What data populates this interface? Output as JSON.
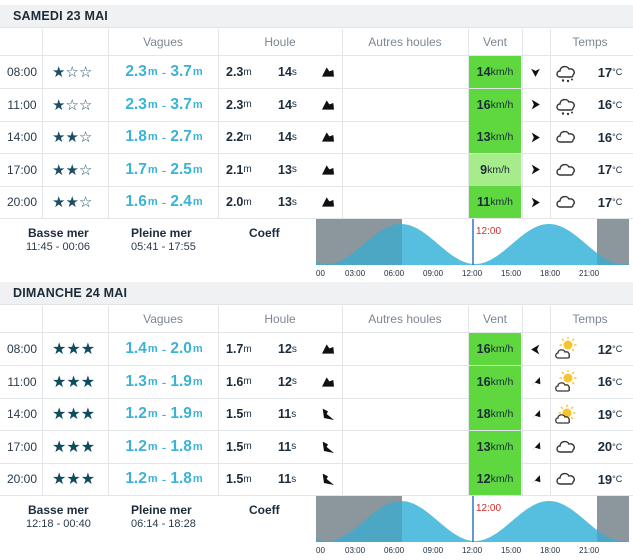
{
  "columns": {
    "waves": "Vagues",
    "swell": "Houle",
    "other_swells": "Autres houles",
    "wind": "Vent",
    "weather": "Temps"
  },
  "colors": {
    "wind_dark": "#5fd83f",
    "wind_light": "#a6ec8a",
    "wave_text": "#3ab3d6",
    "tide_fill": "#56bfdf",
    "night": "#a4aaaf"
  },
  "days": [
    {
      "title": "SAMEDI 23 MAI",
      "rows": [
        {
          "time": "08:00",
          "stars": "★☆☆",
          "wave_min": "2.3",
          "wave_max": "3.7",
          "wave_unit": "m",
          "swell_h": "2.3",
          "swell_h_unit": "m",
          "swell_p": "14",
          "swell_p_unit": "s",
          "swell_icon": "arrow-northeast-icon",
          "wind": "14",
          "wind_unit": "km/h",
          "wind_level": "dark",
          "wind_icon": "arrow-down-icon",
          "weather_icon": "cloud-drizzle-icon",
          "temp": "17",
          "temp_unit": "°C"
        },
        {
          "time": "11:00",
          "stars": "★☆☆",
          "wave_min": "2.3",
          "wave_max": "3.7",
          "wave_unit": "m",
          "swell_h": "2.3",
          "swell_h_unit": "m",
          "swell_p": "14",
          "swell_p_unit": "s",
          "swell_icon": "arrow-northeast-icon",
          "wind": "16",
          "wind_unit": "km/h",
          "wind_level": "dark",
          "wind_icon": "arrow-right-icon",
          "weather_icon": "cloud-drizzle-icon",
          "temp": "16",
          "temp_unit": "°C"
        },
        {
          "time": "14:00",
          "stars": "★★☆",
          "wave_min": "1.8",
          "wave_max": "2.7",
          "wave_unit": "m",
          "swell_h": "2.2",
          "swell_h_unit": "m",
          "swell_p": "14",
          "swell_p_unit": "s",
          "swell_icon": "arrow-northeast-icon",
          "wind": "13",
          "wind_unit": "km/h",
          "wind_level": "dark",
          "wind_icon": "arrow-right-icon",
          "weather_icon": "cloud-icon",
          "temp": "16",
          "temp_unit": "°C"
        },
        {
          "time": "17:00",
          "stars": "★★☆",
          "wave_min": "1.7",
          "wave_max": "2.5",
          "wave_unit": "m",
          "swell_h": "2.1",
          "swell_h_unit": "m",
          "swell_p": "13",
          "swell_p_unit": "s",
          "swell_icon": "arrow-northeast-icon",
          "wind": "9",
          "wind_unit": "km/h",
          "wind_level": "light",
          "wind_icon": "arrow-right-icon",
          "weather_icon": "cloud-icon",
          "temp": "17",
          "temp_unit": "°C"
        },
        {
          "time": "20:00",
          "stars": "★★☆",
          "wave_min": "1.6",
          "wave_max": "2.4",
          "wave_unit": "m",
          "swell_h": "2.0",
          "swell_h_unit": "m",
          "swell_p": "13",
          "swell_p_unit": "s",
          "swell_icon": "arrow-northeast-icon",
          "wind": "11",
          "wind_unit": "km/h",
          "wind_level": "dark",
          "wind_icon": "arrow-right-icon",
          "weather_icon": "cloud-icon",
          "temp": "17",
          "temp_unit": "°C"
        }
      ],
      "tide": {
        "low_label": "Basse mer",
        "low_times": "11:45 - 00:06",
        "high_label": "Pleine mer",
        "high_times": "05:41 - 17:55",
        "coeff_label": "Coeff",
        "now": "12:00"
      },
      "axis": [
        "00",
        "03:00",
        "06:00",
        "09:00",
        "12:00",
        "15:00",
        "18:00",
        "21:00"
      ]
    },
    {
      "title": "DIMANCHE 24 MAI",
      "rows": [
        {
          "time": "08:00",
          "stars": "★★★",
          "wave_min": "1.4",
          "wave_max": "2.0",
          "wave_unit": "m",
          "swell_h": "1.7",
          "swell_h_unit": "m",
          "swell_p": "12",
          "swell_p_unit": "s",
          "swell_icon": "arrow-northeast-icon",
          "wind": "16",
          "wind_unit": "km/h",
          "wind_level": "dark",
          "wind_icon": "arrow-left-icon",
          "weather_icon": "sun-cloud-icon",
          "temp": "12",
          "temp_unit": "°C"
        },
        {
          "time": "11:00",
          "stars": "★★★",
          "wave_min": "1.3",
          "wave_max": "1.9",
          "wave_unit": "m",
          "swell_h": "1.6",
          "swell_h_unit": "m",
          "swell_p": "12",
          "swell_p_unit": "s",
          "swell_icon": "arrow-northeast-icon",
          "wind": "16",
          "wind_unit": "km/h",
          "wind_level": "dark",
          "wind_icon": "arrow-upleft-icon",
          "weather_icon": "sun-cloud-icon",
          "temp": "16",
          "temp_unit": "°C"
        },
        {
          "time": "14:00",
          "stars": "★★★",
          "wave_min": "1.2",
          "wave_max": "1.9",
          "wave_unit": "m",
          "swell_h": "1.5",
          "swell_h_unit": "m",
          "swell_p": "11",
          "swell_p_unit": "s",
          "swell_icon": "arrow-southeast-icon",
          "wind": "18",
          "wind_unit": "km/h",
          "wind_level": "dark",
          "wind_icon": "arrow-upleft-icon",
          "weather_icon": "sun-behind-cloud-icon",
          "temp": "19",
          "temp_unit": "°C"
        },
        {
          "time": "17:00",
          "stars": "★★★",
          "wave_min": "1.2",
          "wave_max": "1.8",
          "wave_unit": "m",
          "swell_h": "1.5",
          "swell_h_unit": "m",
          "swell_p": "11",
          "swell_p_unit": "s",
          "swell_icon": "arrow-southeast-icon",
          "wind": "13",
          "wind_unit": "km/h",
          "wind_level": "dark",
          "wind_icon": "arrow-upleft-icon",
          "weather_icon": "cloud-icon",
          "temp": "20",
          "temp_unit": "°C"
        },
        {
          "time": "20:00",
          "stars": "★★★",
          "wave_min": "1.2",
          "wave_max": "1.8",
          "wave_unit": "m",
          "swell_h": "1.5",
          "swell_h_unit": "m",
          "swell_p": "11",
          "swell_p_unit": "s",
          "swell_icon": "arrow-southeast-icon",
          "wind": "12",
          "wind_unit": "km/h",
          "wind_level": "dark",
          "wind_icon": "arrow-upleft-icon",
          "weather_icon": "cloud-icon",
          "temp": "19",
          "temp_unit": "°C"
        }
      ],
      "tide": {
        "low_label": "Basse mer",
        "low_times": "12:18 - 00:40",
        "high_label": "Pleine mer",
        "high_times": "06:14 - 18:28",
        "coeff_label": "Coeff",
        "now": "12:00"
      },
      "axis": [
        "00",
        "03:00",
        "06:00",
        "09:00",
        "12:00",
        "15:00",
        "18:00",
        "21:00"
      ]
    }
  ]
}
